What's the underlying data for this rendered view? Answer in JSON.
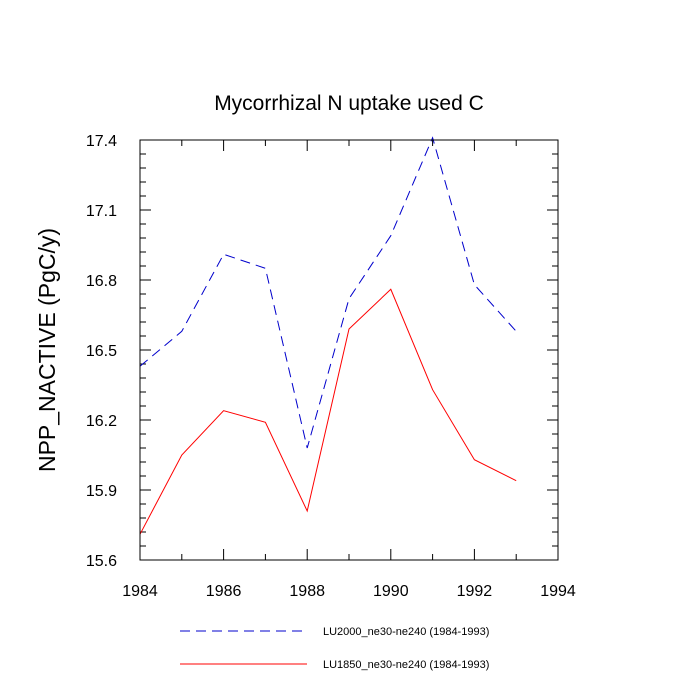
{
  "chart_data": {
    "type": "line",
    "title": "Mycorrhizal N uptake used C",
    "xlabel": "",
    "ylabel": "NPP_NACTIVE  (PgC/y)",
    "xlim": [
      1984,
      1994
    ],
    "ylim": [
      15.6,
      17.4
    ],
    "xticks": [
      1984,
      1986,
      1988,
      1990,
      1992,
      1994
    ],
    "yticks": [
      15.6,
      15.9,
      16.2,
      16.5,
      16.8,
      17.1,
      17.4
    ],
    "ytick_labels": [
      "15.6",
      "15.9",
      "16.2",
      "16.5",
      "16.8",
      "17.1",
      "17.4"
    ],
    "grid": false,
    "legend_position": "bottom",
    "x": [
      1984,
      1985,
      1986,
      1987,
      1988,
      1989,
      1990,
      1991,
      1992,
      1993
    ],
    "series": [
      {
        "name": "LU2000_ne30-ne240 (1984-1993)",
        "color": "#0000cc",
        "style": "dashed",
        "values": [
          16.43,
          16.58,
          16.91,
          16.85,
          16.08,
          16.72,
          16.99,
          17.41,
          16.78,
          16.58
        ]
      },
      {
        "name": "LU1850_ne30-ne240 (1984-1993)",
        "color": "#ff0000",
        "style": "solid",
        "values": [
          15.71,
          16.05,
          16.24,
          16.19,
          15.81,
          16.59,
          16.76,
          16.33,
          16.03,
          15.94
        ]
      }
    ]
  }
}
